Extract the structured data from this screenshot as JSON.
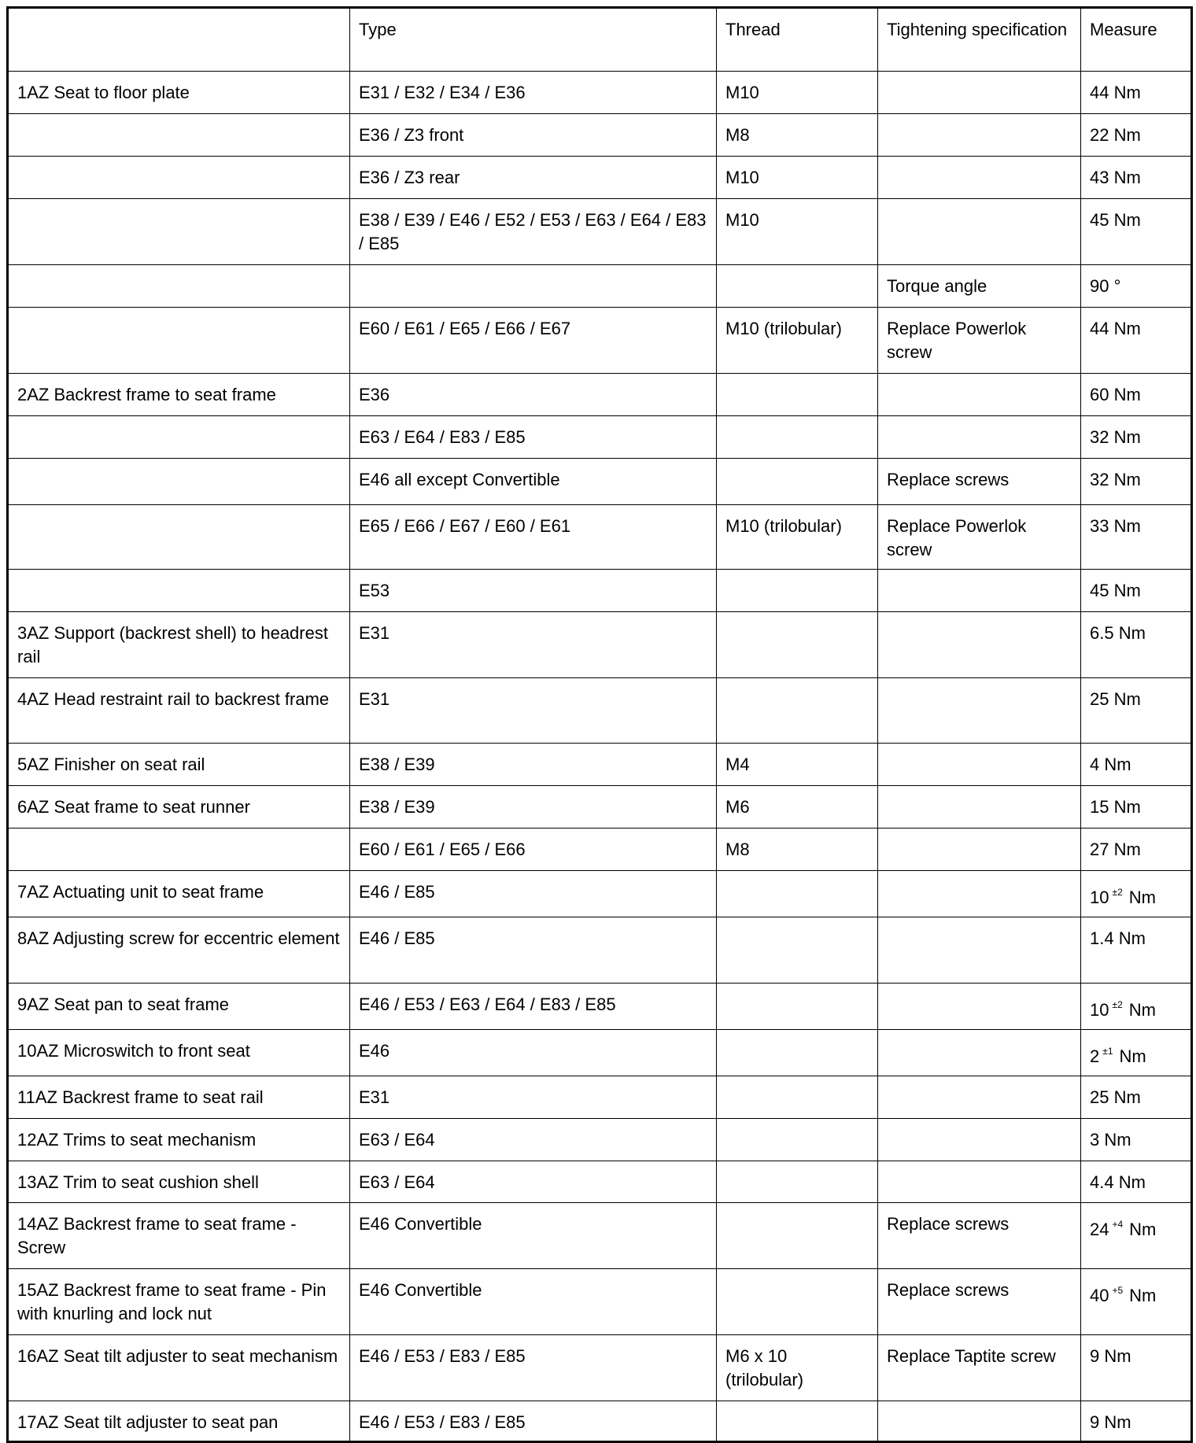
{
  "header": [
    "",
    "Type",
    "Thread",
    "Tightening specification",
    "Measure"
  ],
  "rows": [
    {
      "item": "1AZ  Seat to floor plate",
      "type": "E31 / E32 / E34 / E36",
      "thread": "M10",
      "spec": "",
      "measure": "44 Nm"
    },
    {
      "item": "",
      "type": "E36 / Z3 front",
      "thread": "M8",
      "spec": "",
      "measure": "22 Nm"
    },
    {
      "item": "",
      "type": "E36 / Z3 rear",
      "thread": "M10",
      "spec": "",
      "measure": "43 Nm"
    },
    {
      "item": "",
      "type": "E38 / E39 / E46 / E52 / E53 / E63 / E64 / E83 / E85",
      "thread": "M10",
      "spec": "",
      "measure": "45 Nm"
    },
    {
      "item": "",
      "type": "",
      "thread": "",
      "spec": "Torque angle",
      "measure": "90 °"
    },
    {
      "item": "",
      "type": "E60 / E61 / E65 / E66 / E67",
      "thread": "M10 (trilobular)",
      "spec": "Replace Powerlok screw",
      "measure": "44 Nm"
    },
    {
      "item": "2AZ  Backrest frame to seat frame",
      "type": "E36",
      "thread": "",
      "spec": "",
      "measure": "60 Nm"
    },
    {
      "item": "",
      "type": "E63 / E64 / E83 / E85",
      "thread": "",
      "spec": "",
      "measure": "32 Nm"
    },
    {
      "item": "",
      "type": "E46 all except Convertible",
      "thread": "",
      "spec": "Replace screws",
      "measure": "32  Nm"
    },
    {
      "item": "",
      "type": "E65 / E66 / E67 / E60 / E61",
      "thread": "M10 (trilobular)",
      "spec": "Replace Powerlok screw",
      "measure": "33 Nm"
    },
    {
      "item": "",
      "type": "E53",
      "thread": "",
      "spec": "",
      "measure": "45 Nm"
    },
    {
      "item": "3AZ  Support (backrest shell) to headrest rail",
      "type": "E31",
      "thread": "",
      "spec": "",
      "measure": "6.5 Nm"
    },
    {
      "item": "4AZ  Head restraint rail to backrest frame",
      "type": "E31",
      "thread": "",
      "spec": "",
      "measure": "25 Nm"
    },
    {
      "item": "5AZ  Finisher on seat rail",
      "type": "E38 / E39",
      "thread": "M4",
      "spec": "",
      "measure": "4 Nm"
    },
    {
      "item": "6AZ  Seat frame to seat runner",
      "type": "E38 / E39",
      "thread": "M6",
      "spec": "",
      "measure": "15 Nm"
    },
    {
      "item": "",
      "type": "E60 / E61 / E65 / E66",
      "thread": "M8",
      "spec": "",
      "measure": "27 Nm"
    },
    {
      "item": "7AZ  Actuating unit to seat frame",
      "type": "E46 / E85",
      "thread": "",
      "spec": "",
      "measure": "10",
      "measure_sup": "±2",
      "measure_unit": "Nm"
    },
    {
      "item": "8AZ  Adjusting screw for eccentric element",
      "type": "E46 / E85",
      "thread": "",
      "spec": "",
      "measure": "1.4 Nm"
    },
    {
      "item": "9AZ  Seat pan to seat frame",
      "type": "E46 / E53 / E63 / E64 / E83 / E85",
      "thread": "",
      "spec": "",
      "measure": "10",
      "measure_sup": "±2",
      "measure_unit": "Nm"
    },
    {
      "item": "10AZ  Microswitch to front seat",
      "type": "E46",
      "thread": "",
      "spec": "",
      "measure": "2",
      "measure_sup": "±1",
      "measure_unit": "Nm"
    },
    {
      "item": "11AZ  Backrest frame to seat rail",
      "type": "E31",
      "thread": "",
      "spec": "",
      "measure": "25 Nm"
    },
    {
      "item": "12AZ  Trims to seat mechanism",
      "type": "E63 / E64",
      "thread": "",
      "spec": "",
      "measure": "3 Nm"
    },
    {
      "item": "13AZ  Trim to seat cushion shell",
      "type": "E63 / E64",
      "thread": "",
      "spec": "",
      "measure": "4.4 Nm"
    },
    {
      "item": "14AZ  Backrest frame to seat frame - Screw",
      "type": "E46 Convertible",
      "thread": "",
      "spec": "Replace screws",
      "measure": "24",
      "measure_sup": "+4",
      "measure_unit": "Nm"
    },
    {
      "item": "15AZ  Backrest frame to seat frame - Pin with knurling and lock nut",
      "type": "E46 Convertible",
      "thread": "",
      "spec": "Replace screws",
      "measure": "40",
      "measure_sup": "+5",
      "measure_unit": "Nm"
    },
    {
      "item": "16AZ  Seat tilt adjuster to seat mechanism",
      "type": "E46 / E53 / E83 / E85",
      "thread": "M6 x 10 (trilobular)",
      "spec": "Replace Taptite screw",
      "measure": "9 Nm"
    },
    {
      "item": "17AZ  Seat tilt adjuster to seat pan",
      "type": "E46 / E53 / E83 / E85",
      "thread": "",
      "spec": "",
      "measure": "9 Nm"
    }
  ]
}
